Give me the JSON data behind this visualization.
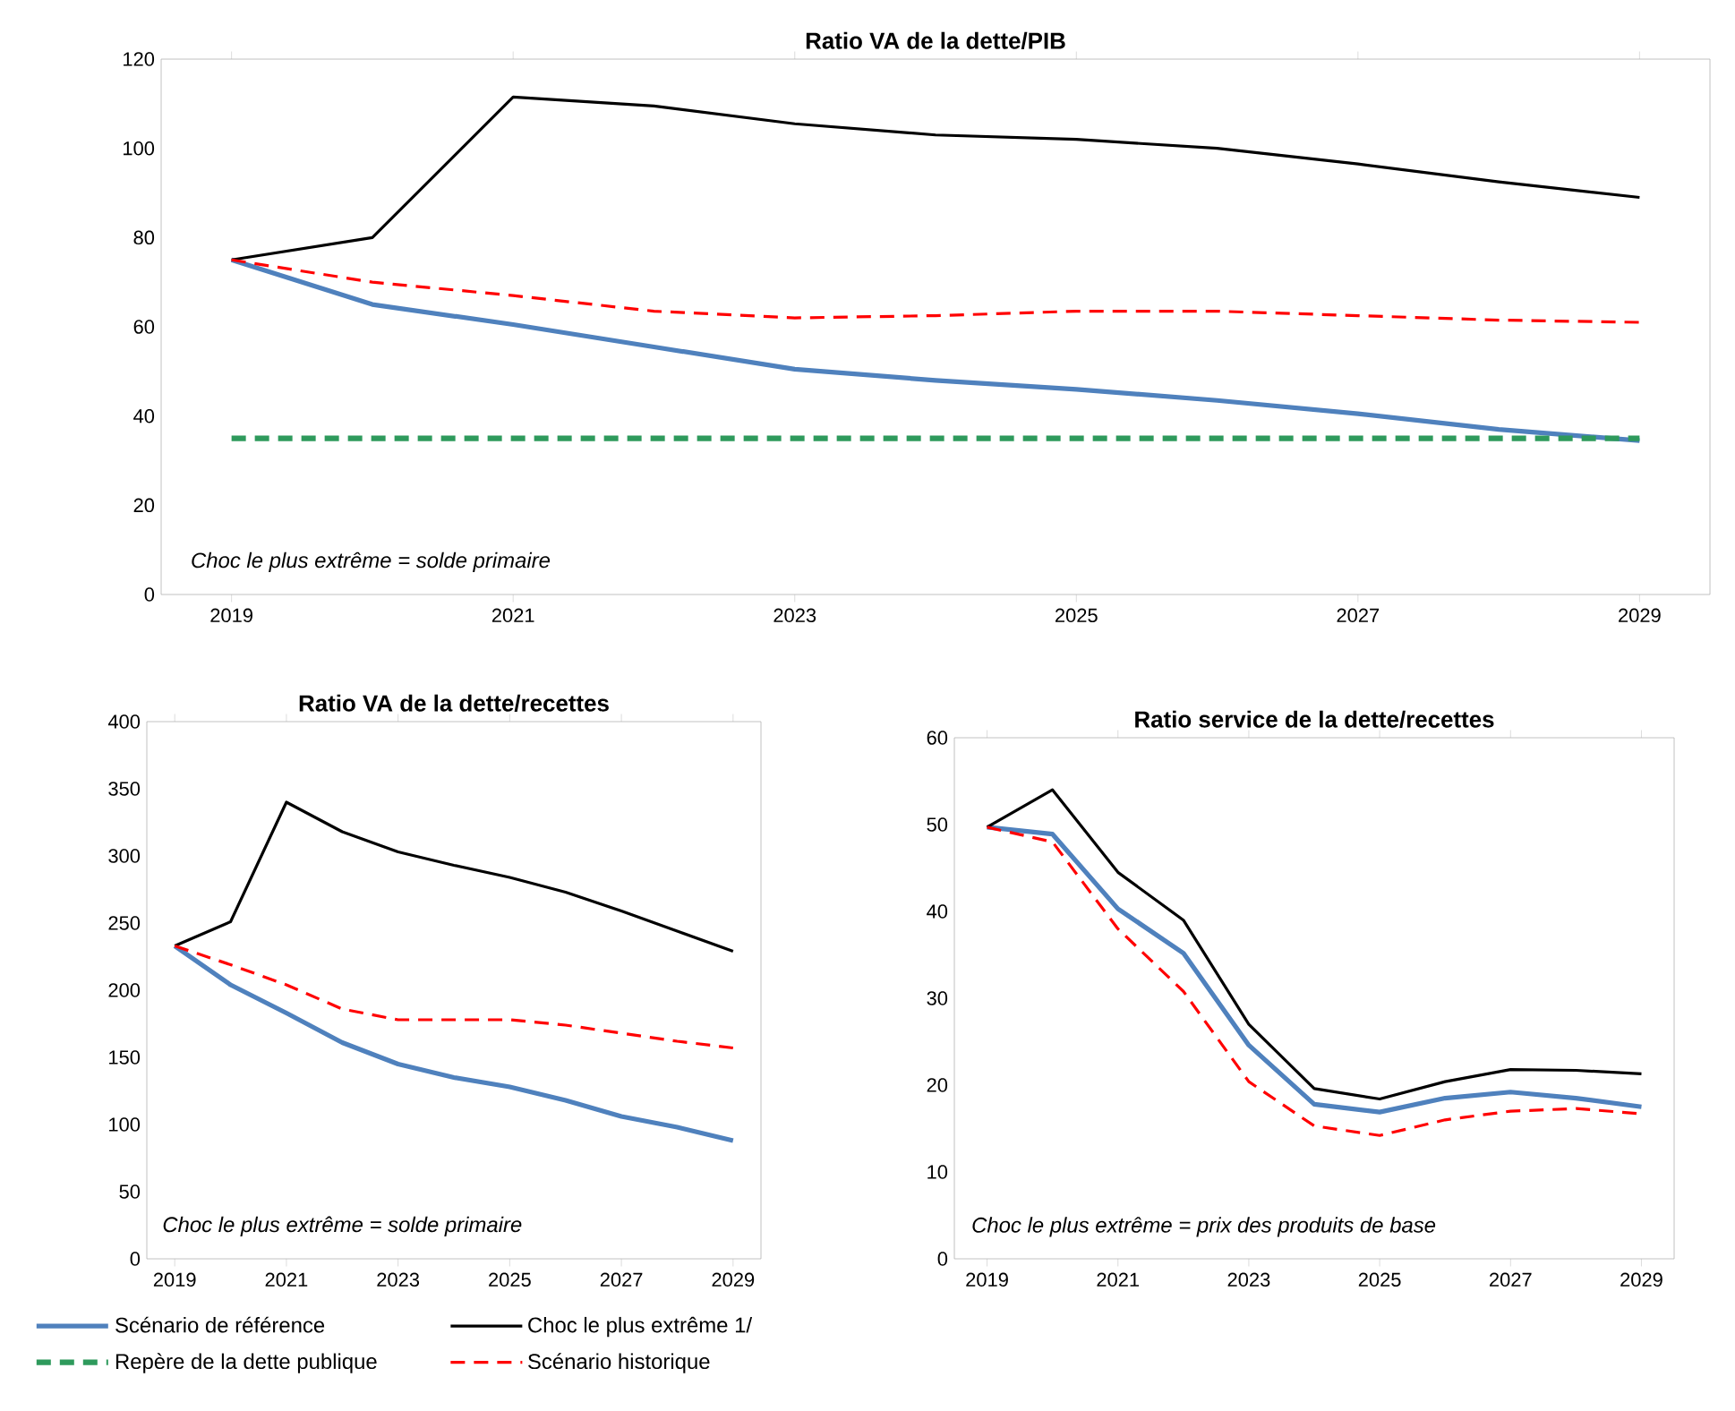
{
  "chart_data": [
    {
      "type": "line",
      "title": "Ratio VA de la dette/PIB",
      "x": [
        2019,
        2020,
        2021,
        2022,
        2023,
        2024,
        2025,
        2026,
        2027,
        2028,
        2029
      ],
      "xlim": [
        2018.5,
        2029.5
      ],
      "xticks": [
        2019,
        2021,
        2023,
        2025,
        2027,
        2029
      ],
      "ylim": [
        0,
        120
      ],
      "yticks": [
        0,
        20,
        40,
        60,
        80,
        100,
        120
      ],
      "legend": "bottom",
      "annotations": [
        "Choc le plus extrême =  solde primaire"
      ],
      "series": [
        {
          "name": "Scénario de référence",
          "color": "#4f81bd",
          "values": [
            75,
            65,
            60.5,
            55.5,
            50.5,
            48,
            46,
            43.5,
            40.5,
            37,
            34.5
          ]
        },
        {
          "name": "Repère de la dette publique",
          "color": "#2e9a5c",
          "line_style": "dashed",
          "values": [
            35,
            35,
            35,
            35,
            35,
            35,
            35,
            35,
            35,
            35,
            35
          ]
        },
        {
          "name": "Choc le plus extrême 1/",
          "color": "#000000",
          "values": [
            75,
            80,
            111.5,
            109.5,
            105.5,
            103,
            102,
            100,
            96.5,
            92.5,
            89
          ]
        },
        {
          "name": "Scénario historique",
          "color": "#ff0000",
          "line_style": "dashed",
          "values": [
            75,
            70,
            67,
            63.5,
            62,
            62.5,
            63.5,
            63.5,
            62.5,
            61.5,
            61
          ]
        }
      ]
    },
    {
      "type": "line",
      "title": "Ratio VA de la dette/recettes",
      "x": [
        2019,
        2020,
        2021,
        2022,
        2023,
        2024,
        2025,
        2026,
        2027,
        2028,
        2029
      ],
      "xlim": [
        2018.5,
        2029.5
      ],
      "xticks": [
        2019,
        2021,
        2023,
        2025,
        2027,
        2029
      ],
      "ylim": [
        0,
        400
      ],
      "yticks": [
        0,
        50,
        100,
        150,
        200,
        250,
        300,
        350,
        400
      ],
      "annotations": [
        "Choc le plus extrême = solde primaire"
      ],
      "series": [
        {
          "color": "#4f81bd",
          "values": [
            233,
            204,
            183,
            161,
            145,
            135,
            128,
            118,
            106,
            98,
            88
          ]
        },
        {
          "color": "#000000",
          "values": [
            233,
            251,
            340,
            318,
            303,
            293,
            284,
            273,
            259,
            244,
            229
          ]
        },
        {
          "color": "#ff0000",
          "line_style": "dashed",
          "values": [
            233,
            219,
            204,
            186,
            178,
            178,
            178,
            174,
            168,
            162,
            157
          ]
        }
      ]
    },
    {
      "type": "line",
      "title": "Ratio service de la dette/recettes",
      "x": [
        2019,
        2020,
        2021,
        2022,
        2023,
        2024,
        2025,
        2026,
        2027,
        2028,
        2029
      ],
      "xlim": [
        2018.5,
        2029.5
      ],
      "xticks": [
        2019,
        2021,
        2023,
        2025,
        2027,
        2029
      ],
      "ylim": [
        0,
        60
      ],
      "yticks": [
        0,
        10,
        20,
        30,
        40,
        50,
        60
      ],
      "annotations": [
        "Choc le plus extrême = prix des produits de base"
      ],
      "series": [
        {
          "color": "#4f81bd",
          "values": [
            49.7,
            48.9,
            40.3,
            35.2,
            24.6,
            17.8,
            16.9,
            18.5,
            19.2,
            18.5,
            17.5
          ]
        },
        {
          "color": "#000000",
          "values": [
            49.7,
            54,
            44.5,
            39,
            27,
            19.6,
            18.4,
            20.4,
            21.8,
            21.7,
            21.3
          ]
        },
        {
          "color": "#ff0000",
          "line_style": "dashed",
          "values": [
            49.7,
            48,
            38,
            30.8,
            20.4,
            15.3,
            14.2,
            16,
            17,
            17.3,
            16.7
          ]
        }
      ]
    }
  ]
}
